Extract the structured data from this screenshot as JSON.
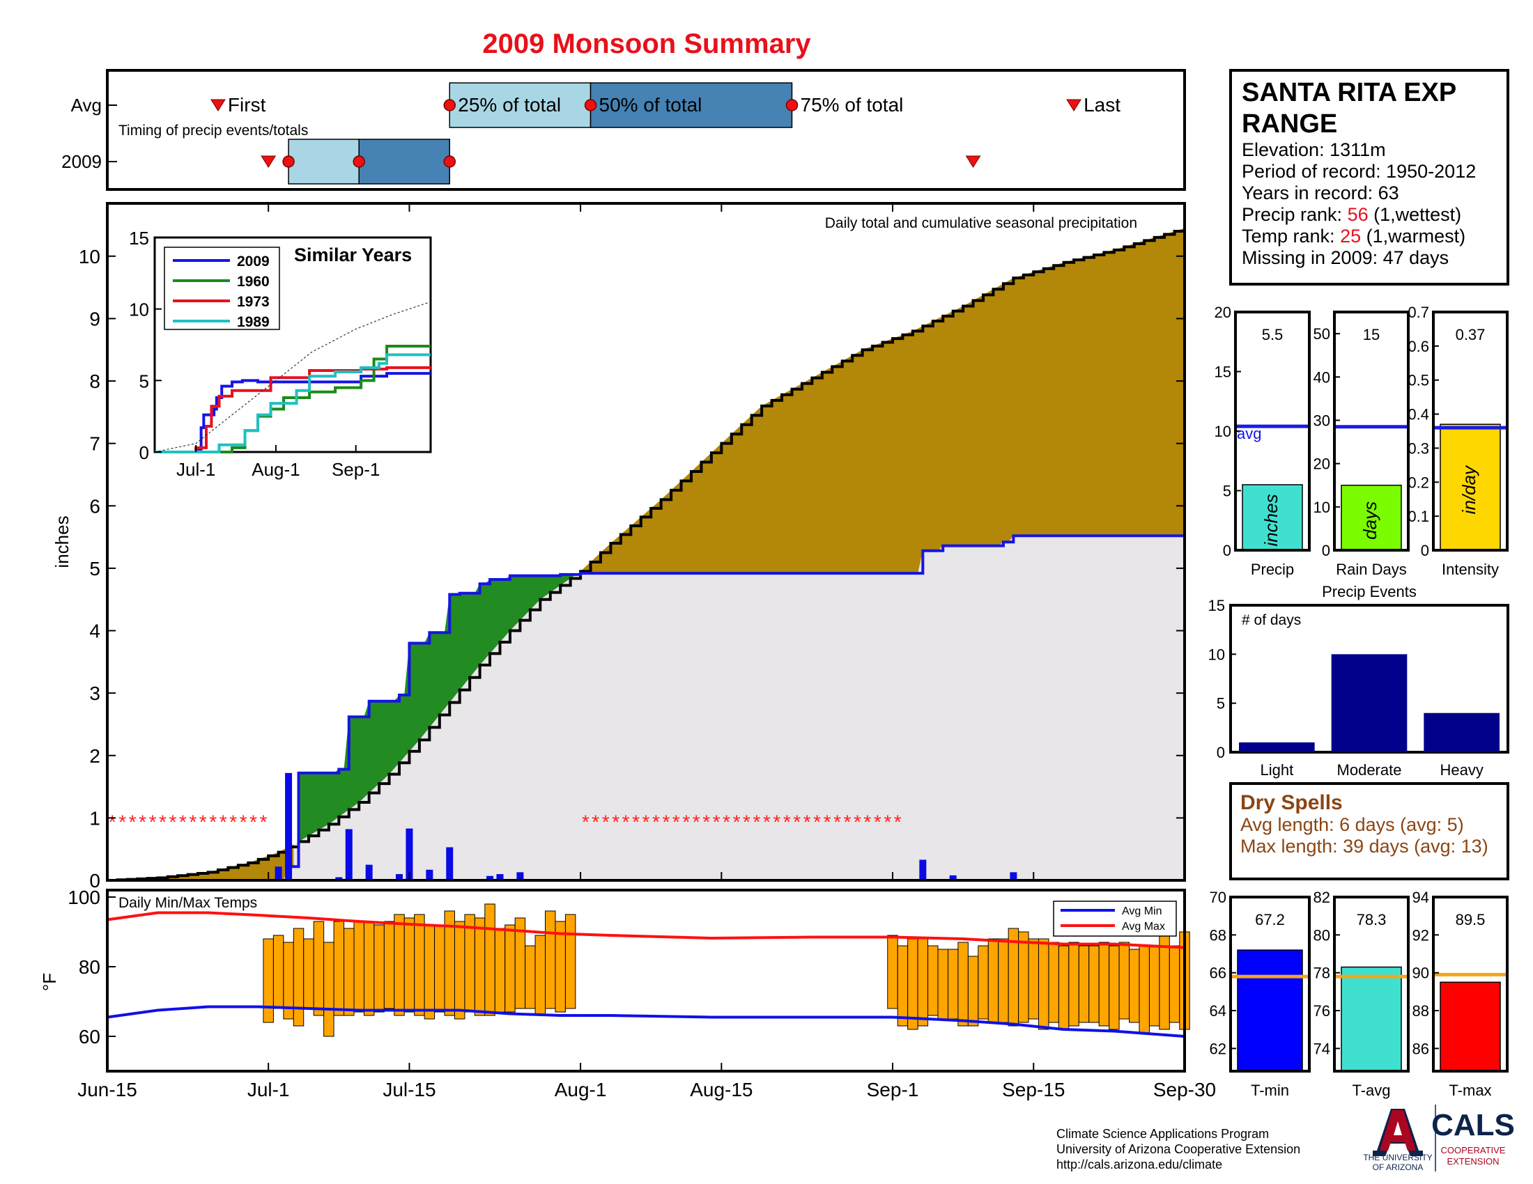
{
  "title": "2009 Monsoon Summary",
  "colors": {
    "title": "#e8101b",
    "avg_blue": "#1414e6",
    "brown": "#b38708",
    "green": "#228b22",
    "light_gray": "#e8e6e8",
    "light_blue": "#a9d6e5",
    "steel_blue": "#4682b4",
    "orange": "#ffa500",
    "navy": "#00008b",
    "dry_spell_brown": "#8b4513",
    "rank_red": "#e8101b",
    "star_red": "#ff2020"
  },
  "info_box": {
    "station": "SANTA RITA EXP",
    "station2": "RANGE",
    "elevation": "Elevation: 1311m",
    "period": "Period of record: 1950-2012",
    "years": "Years in record: 63",
    "precip_rank_label": "Precip rank: ",
    "precip_rank_value": "56",
    "precip_rank_suffix": " (1,wettest)",
    "temp_rank_label": "Temp rank: ",
    "temp_rank_value": "25",
    "temp_rank_suffix": " (1,warmest)",
    "missing": "Missing in 2009: 47 days"
  },
  "dry_spells": {
    "title": "Dry Spells",
    "avg": "Avg length: 6 days (avg: 5)",
    "max": "Max length: 39 days (avg: 13)"
  },
  "footer": {
    "line1": "Climate Science Applications Program",
    "line2": "University of Arizona Cooperative Extension",
    "line3": "http://cals.arizona.edu/climate",
    "ua_line1": "THE UNIVERSITY",
    "ua_line2": "OF ARIZONA",
    "cals": "CALS",
    "cals_line1": "COOPERATIVE",
    "cals_line2": "EXTENSION"
  },
  "chart_data": [
    {
      "id": "timing",
      "type": "table",
      "title": "Timing of precip events/totals",
      "rows": [
        "Avg",
        "2009"
      ],
      "x_range_days": [
        0,
        107
      ],
      "avg": {
        "first": 11,
        "p25": 34,
        "p50": 48,
        "p75": 68,
        "last": 96
      },
      "y2009": {
        "first": 16,
        "p25": 18,
        "p50": 25,
        "p75": 34,
        "last": 86
      },
      "labels": {
        "first": "First",
        "p25": "25% of total",
        "p50": "50% of total",
        "p75": "75% of total",
        "last": "Last"
      }
    },
    {
      "id": "cumulative",
      "type": "area",
      "title": "Daily total and cumulative seasonal precipitation",
      "ylabel": "inches",
      "x_ticks": [
        "Jun-15",
        "Jul-1",
        "Jul-15",
        "Aug-1",
        "Aug-15",
        "Sep-1",
        "Sep-15",
        "Sep-30"
      ],
      "x_tick_days": [
        0,
        16,
        30,
        47,
        61,
        78,
        92,
        107
      ],
      "ylim": [
        0,
        10.5
      ],
      "y_ticks": [
        0,
        1,
        2,
        3,
        4,
        5,
        6,
        7,
        8,
        9,
        10
      ],
      "avg_cumulative_curve": {
        "day": [
          0,
          5,
          10,
          14,
          17,
          19,
          22,
          25,
          28,
          31,
          34,
          37,
          40,
          43,
          47,
          50,
          55,
          60,
          65,
          70,
          75,
          80,
          85,
          90,
          95,
          100,
          104,
          107
        ],
        "inches": [
          0,
          0.04,
          0.13,
          0.28,
          0.45,
          0.62,
          0.9,
          1.25,
          1.7,
          2.25,
          2.85,
          3.45,
          4.0,
          4.5,
          4.95,
          5.4,
          6.1,
          6.85,
          7.6,
          8.05,
          8.5,
          8.8,
          9.2,
          9.65,
          9.9,
          10.1,
          10.3,
          10.45
        ]
      },
      "cumulative_2009": {
        "day": [
          0,
          16,
          18,
          19,
          23,
          24,
          26,
          29,
          30,
          32,
          34,
          35,
          37,
          38,
          40,
          45,
          47,
          48,
          80,
          81,
          83,
          89,
          90,
          107
        ],
        "inches": [
          0,
          0,
          0.22,
          1.72,
          1.78,
          2.62,
          2.87,
          2.97,
          3.8,
          3.97,
          4.58,
          4.6,
          4.75,
          4.82,
          4.88,
          4.9,
          4.92,
          4.92,
          4.92,
          5.28,
          5.36,
          5.42,
          5.52,
          5.52
        ]
      },
      "daily_precip_2009": {
        "day": [
          17,
          18,
          23,
          24,
          26,
          29,
          30,
          32,
          34,
          38,
          39,
          41,
          81,
          84,
          90
        ],
        "inches": [
          0.22,
          1.72,
          0.05,
          0.82,
          0.25,
          0.1,
          0.83,
          0.17,
          0.53,
          0.07,
          0.1,
          0.13,
          0.33,
          0.08,
          0.13
        ]
      },
      "missing_days_markers": {
        "ranges": [
          [
            0,
            15
          ],
          [
            47,
            78
          ]
        ],
        "y": 1,
        "symbol": "*"
      },
      "legend_note": "Similar Years inset"
    },
    {
      "id": "similar_years",
      "type": "line",
      "title": "Similar Years",
      "x_ticks": [
        "Jul-1",
        "Aug-1",
        "Sep-1"
      ],
      "ylim": [
        0,
        15
      ],
      "y_ticks": [
        0,
        5,
        10,
        15
      ],
      "series": [
        {
          "name": "2009",
          "color": "#1414e6",
          "day": [
            0,
            16,
            18,
            19,
            23,
            24,
            26,
            30,
            34,
            40,
            80,
            90,
            107
          ],
          "values": [
            0,
            0.2,
            1.7,
            2.6,
            3.0,
            3.8,
            4.6,
            4.9,
            5.0,
            4.9,
            5.3,
            5.5,
            5.5
          ]
        },
        {
          "name": "1960",
          "color": "#1a8a1a",
          "day": [
            0,
            30,
            35,
            40,
            45,
            50,
            60,
            70,
            80,
            85,
            90,
            107
          ],
          "values": [
            0,
            0.3,
            1.5,
            2.5,
            3.0,
            3.8,
            4.2,
            4.5,
            5.0,
            6.5,
            7.4,
            7.4
          ]
        },
        {
          "name": "1973",
          "color": "#e8101b",
          "day": [
            0,
            16,
            20,
            22,
            25,
            30,
            45,
            60,
            80,
            90,
            107
          ],
          "values": [
            0,
            0.3,
            1.8,
            3.2,
            3.9,
            4.3,
            5.2,
            5.7,
            5.8,
            5.9,
            6.0
          ]
        },
        {
          "name": "1989",
          "color": "#20c0c0",
          "day": [
            0,
            25,
            35,
            40,
            45,
            55,
            60,
            70,
            80,
            87,
            90,
            107
          ],
          "values": [
            0,
            0.5,
            1.5,
            2.6,
            3.4,
            4.3,
            5.3,
            5.6,
            5.9,
            6.2,
            6.8,
            6.8
          ]
        },
        {
          "name": "average",
          "color": "#333333",
          "day": [
            0,
            16,
            30,
            47,
            61,
            78,
            92,
            107
          ],
          "values": [
            0,
            0.6,
            2.6,
            5.0,
            7.0,
            8.6,
            9.6,
            10.5
          ]
        }
      ]
    },
    {
      "id": "temps",
      "type": "bar",
      "title": "Daily Min/Max Temps",
      "ylabel": "°F",
      "ylim": [
        50,
        102
      ],
      "y_ticks": [
        60,
        80,
        100
      ],
      "legend": [
        "Avg Min",
        "Avg Max"
      ],
      "avg_max": {
        "day": [
          0,
          5,
          10,
          15,
          20,
          25,
          30,
          35,
          40,
          45,
          50,
          60,
          70,
          78,
          85,
          90,
          95,
          100,
          107
        ],
        "values": [
          93.5,
          95.5,
          95.5,
          94.8,
          94.0,
          93.0,
          92.2,
          91.5,
          90.5,
          89.5,
          89.0,
          88.2,
          88.5,
          88.5,
          88.0,
          87.2,
          86.5,
          86.5,
          85.5
        ]
      },
      "avg_min": {
        "day": [
          0,
          5,
          10,
          15,
          20,
          25,
          30,
          35,
          40,
          45,
          50,
          60,
          70,
          78,
          85,
          90,
          95,
          100,
          107
        ],
        "values": [
          65.5,
          67.5,
          68.5,
          68.5,
          68.0,
          67.5,
          67.5,
          67.5,
          66.5,
          66.0,
          66.0,
          65.5,
          65.5,
          65.5,
          64.5,
          63.5,
          62.0,
          61.5,
          60.0
        ]
      },
      "daily_2009": {
        "day": [
          16,
          17,
          18,
          19,
          20,
          21,
          22,
          23,
          24,
          25,
          26,
          27,
          28,
          29,
          30,
          31,
          32,
          33,
          34,
          35,
          36,
          37,
          38,
          39,
          40,
          41,
          42,
          43,
          44,
          45,
          46,
          78,
          79,
          80,
          81,
          82,
          83,
          84,
          85,
          86,
          87,
          88,
          89,
          90,
          91,
          92,
          93,
          94,
          95,
          96,
          97,
          98,
          99,
          100,
          101,
          102,
          103,
          104,
          105,
          106,
          107
        ],
        "min": [
          64,
          68,
          65,
          63,
          68,
          66,
          60,
          66,
          66,
          67,
          66,
          67,
          68,
          66,
          67,
          66,
          65,
          67,
          66,
          65,
          67,
          66,
          66,
          67,
          67,
          68,
          68,
          66,
          68,
          67,
          68,
          68,
          63,
          62,
          63,
          66,
          65,
          65,
          63,
          63,
          65,
          64,
          64,
          63,
          64,
          65,
          62,
          64,
          62,
          63,
          64,
          64,
          63,
          62,
          65,
          64,
          61,
          63,
          62,
          64,
          62
        ],
        "max": [
          88,
          89,
          87,
          91,
          88,
          93,
          87,
          93,
          91,
          93,
          93,
          92,
          93,
          95,
          94,
          95,
          92,
          92,
          96,
          93,
          95,
          94,
          98,
          91,
          92,
          94,
          86,
          89,
          96,
          93,
          95,
          89,
          86,
          88,
          88,
          86,
          85,
          85,
          87,
          83,
          86,
          88,
          88,
          91,
          90,
          88,
          88,
          87,
          86,
          87,
          86,
          86,
          87,
          86,
          87,
          85,
          86,
          86,
          90,
          86,
          90
        ]
      }
    },
    {
      "id": "precip_bar",
      "type": "bar",
      "xlabel": "Precip",
      "ylim": [
        0,
        20
      ],
      "y_ticks": [
        0,
        5,
        10,
        15,
        20
      ],
      "value": 5.5,
      "value_label": "5.5",
      "avg": 10.4,
      "avg_label": "avg",
      "unit_label": "inches",
      "color": "#40e0d0"
    },
    {
      "id": "raindays_bar",
      "type": "bar",
      "xlabel": "Rain Days",
      "ylim": [
        0,
        55
      ],
      "y_ticks": [
        0,
        10,
        20,
        30,
        40,
        50
      ],
      "value": 15,
      "value_label": "15",
      "avg": 28.5,
      "unit_label": "days",
      "color": "#7cfc00"
    },
    {
      "id": "intensity_bar",
      "type": "bar",
      "xlabel": "Intensity",
      "ylim": [
        0,
        0.7
      ],
      "y_ticks": [
        0,
        0.1,
        0.2,
        0.3,
        0.4,
        0.5,
        0.6,
        0.7
      ],
      "value": 0.37,
      "value_label": "0.37",
      "avg": 0.36,
      "unit_label": "in/day",
      "color": "#ffd700"
    },
    {
      "id": "precip_events",
      "type": "bar",
      "title": "Precip Events",
      "ylabel": "# of days",
      "categories": [
        "Light",
        "Moderate",
        "Heavy"
      ],
      "values": [
        1,
        10,
        4
      ],
      "ylim": [
        0,
        15
      ],
      "y_ticks": [
        0,
        5,
        10,
        15
      ],
      "color": "#00008b"
    },
    {
      "id": "tmin_bar",
      "type": "bar",
      "xlabel": "T-min",
      "ylim": [
        60.8,
        70
      ],
      "y_ticks": [
        62,
        64,
        66,
        68,
        70
      ],
      "value": 67.2,
      "value_label": "67.2",
      "avg": 65.8,
      "color": "#0000ff"
    },
    {
      "id": "tavg_bar",
      "type": "bar",
      "xlabel": "T-avg",
      "ylim": [
        72.8,
        82
      ],
      "y_ticks": [
        74,
        76,
        78,
        80,
        82
      ],
      "value": 78.3,
      "value_label": "78.3",
      "avg": 77.8,
      "color": "#40e0d0"
    },
    {
      "id": "tmax_bar",
      "type": "bar",
      "xlabel": "T-max",
      "ylim": [
        84.8,
        94
      ],
      "y_ticks": [
        86,
        88,
        90,
        92,
        94
      ],
      "value": 89.5,
      "value_label": "89.5",
      "avg": 89.9,
      "color": "#ff0000"
    }
  ]
}
